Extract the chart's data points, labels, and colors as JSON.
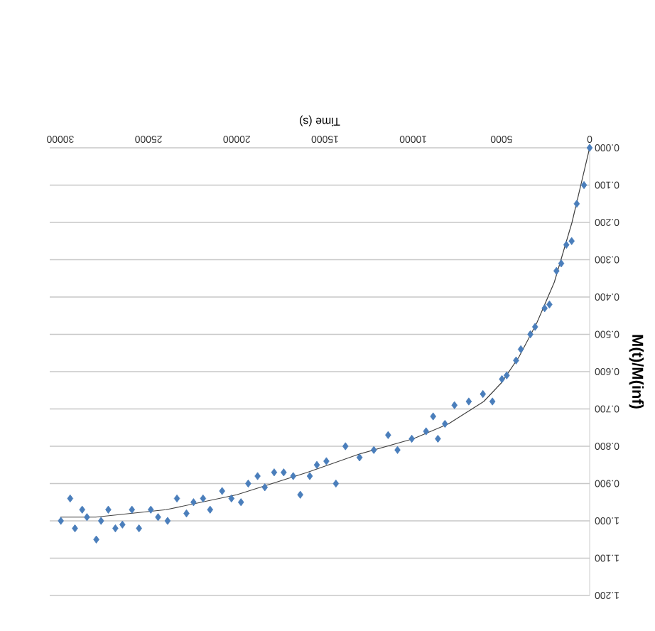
{
  "chart_data": {
    "type": "scatter",
    "xlabel": "Time (s)",
    "ylabel": "M(t)/M(inf)",
    "xlim": [
      30600,
      0
    ],
    "ylim": [
      1.2,
      0
    ],
    "xticks": [
      0,
      5000,
      10000,
      15000,
      20000,
      25000,
      30000
    ],
    "yticks": [
      {
        "value": 0,
        "label": "0.000"
      },
      {
        "value": 0.1,
        "label": "0.100"
      },
      {
        "value": 0.2,
        "label": "0.200"
      },
      {
        "value": 0.3,
        "label": "0.300"
      },
      {
        "value": 0.4,
        "label": "0.400"
      },
      {
        "value": 0.5,
        "label": "0.500"
      },
      {
        "value": 0.6,
        "label": "0.600"
      },
      {
        "value": 0.7,
        "label": "0.700"
      },
      {
        "value": 0.8,
        "label": "0.800"
      },
      {
        "value": 0.9,
        "label": "0.900"
      },
      {
        "value": 1.0,
        "label": "1.000"
      },
      {
        "value": 1.1,
        "label": "1.100"
      },
      {
        "value": 1.2,
        "label": "1.200"
      }
    ],
    "grid": "y",
    "series": [
      {
        "marker": "diamond",
        "color": "#4a7ebb",
        "x": [
          0,
          320,
          730,
          1020,
          1320,
          1610,
          1880,
          2280,
          2550,
          3090,
          3360,
          3900,
          4170,
          4700,
          4970,
          5510,
          6050,
          6850,
          7660,
          8200,
          8600,
          8870,
          9270,
          10080,
          10890,
          11420,
          12230,
          13040,
          13840,
          14380,
          14920,
          15460,
          15860,
          16400,
          16800,
          17340,
          17880,
          18410,
          18820,
          19350,
          19760,
          20300,
          20830,
          21510,
          21910,
          22450,
          22850,
          23390,
          23920,
          24460,
          24870,
          25540,
          25940,
          26480,
          26880,
          27280,
          27690,
          27960,
          28490,
          28760,
          29170,
          29440,
          29970
        ],
        "values": [
          0.0,
          0.1,
          0.15,
          0.25,
          0.26,
          0.31,
          0.33,
          0.42,
          0.43,
          0.48,
          0.5,
          0.54,
          0.57,
          0.61,
          0.62,
          0.68,
          0.66,
          0.68,
          0.69,
          0.74,
          0.78,
          0.72,
          0.76,
          0.78,
          0.81,
          0.77,
          0.81,
          0.83,
          0.8,
          0.9,
          0.84,
          0.85,
          0.88,
          0.93,
          0.88,
          0.87,
          0.87,
          0.91,
          0.88,
          0.9,
          0.95,
          0.94,
          0.92,
          0.97,
          0.94,
          0.95,
          0.98,
          0.94,
          1.0,
          0.99,
          0.97,
          1.02,
          0.97,
          1.01,
          1.02,
          0.97,
          1.0,
          1.05,
          0.99,
          0.97,
          1.02,
          0.94,
          1.0
        ]
      },
      {
        "type": "line",
        "color": "#404040",
        "line_style": "solid",
        "x": [
          0,
          1000,
          2000,
          3000,
          4000,
          5000,
          6000,
          8000,
          10000,
          13000,
          16000,
          20000,
          24000,
          28000,
          30000
        ],
        "values": [
          0.0,
          0.2,
          0.36,
          0.47,
          0.56,
          0.63,
          0.68,
          0.74,
          0.78,
          0.82,
          0.87,
          0.93,
          0.97,
          0.99,
          0.99
        ]
      }
    ]
  }
}
